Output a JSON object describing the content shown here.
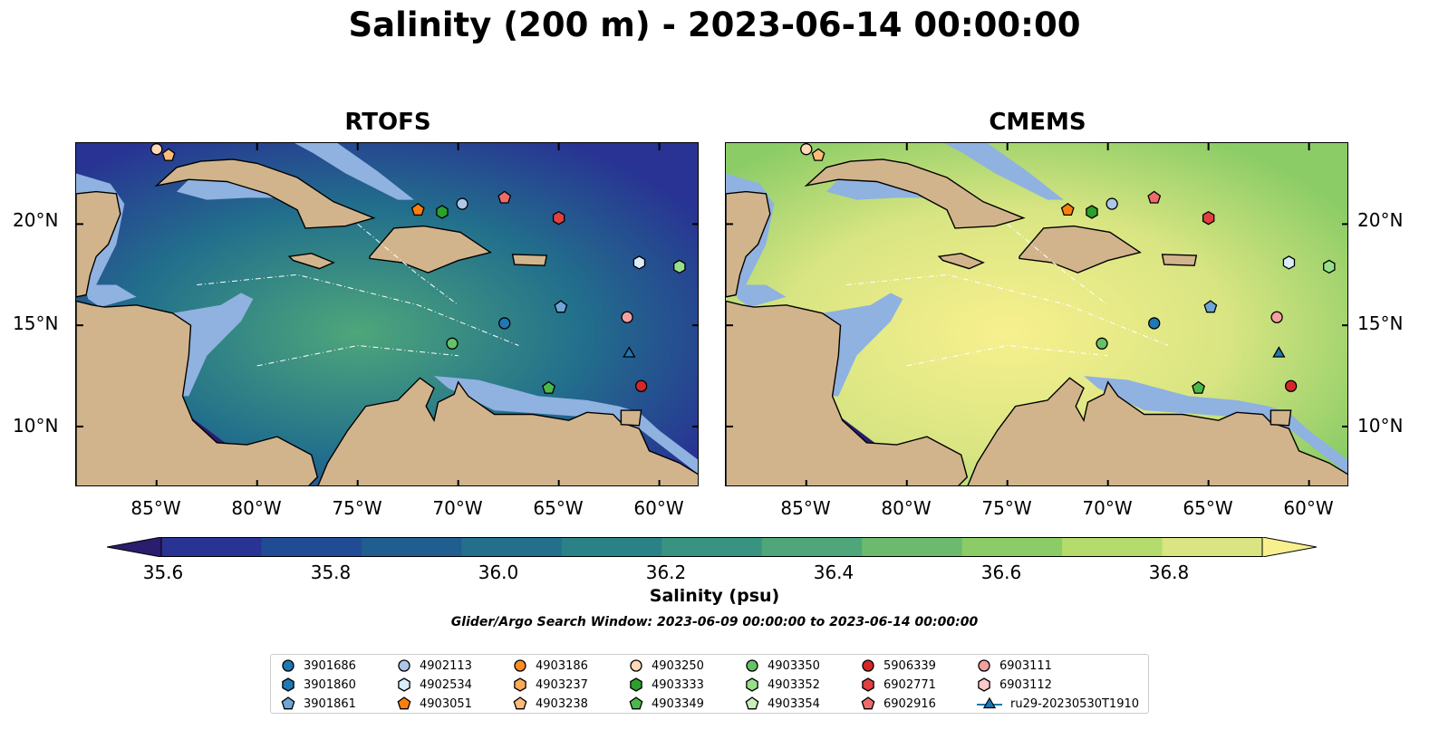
{
  "title": "Salinity (200 m) - 2023-06-14 00:00:00",
  "panels": [
    {
      "title": "RTOFS",
      "base_color": "#2c6d8e"
    },
    {
      "title": "CMEMS",
      "base_color": "#f6ec96"
    }
  ],
  "map_extent": {
    "lon_min": -89,
    "lon_max": -58,
    "lat_min": 7,
    "lat_max": 24
  },
  "lat_ticks": [
    {
      "value": 20,
      "label": "20°N"
    },
    {
      "value": 15,
      "label": "15°N"
    },
    {
      "value": 10,
      "label": "10°N"
    }
  ],
  "lon_ticks": [
    {
      "value": -85,
      "label": "85°W"
    },
    {
      "value": -80,
      "label": "80°W"
    },
    {
      "value": -75,
      "label": "75°W"
    },
    {
      "value": -70,
      "label": "70°W"
    },
    {
      "value": -65,
      "label": "65°W"
    },
    {
      "value": -60,
      "label": "60°W"
    }
  ],
  "colorbar": {
    "label": "Salinity (psu)",
    "min": 35.5,
    "max": 37.0,
    "step": 0.1,
    "ticks": [
      "35.6",
      "35.8",
      "36.0",
      "36.2",
      "36.4",
      "36.6",
      "36.8"
    ],
    "colors": [
      "#2a1d6e",
      "#283393",
      "#1f4c94",
      "#1f5e8f",
      "#22708c",
      "#2a8287",
      "#389480",
      "#4ea67a",
      "#6bba6e",
      "#8bcc66",
      "#b4db6c",
      "#d8e582",
      "#f8f08e"
    ]
  },
  "search_window": "Glider/Argo Search Window: 2023-06-09 00:00:00 to 2023-06-14 00:00:00",
  "colors": {
    "land": "#d2b48c",
    "shelf": "#8fb2e0",
    "markers": {
      "blue_dark": "#1f77b4",
      "blue_light": "#aec7e8",
      "orange": "#ff7f0e",
      "peach": "#ffbb78",
      "green": "#2ca02c",
      "green_light": "#98df8a",
      "red": "#d62728",
      "pink": "#ff9896"
    }
  },
  "legend": [
    {
      "label": "3901686",
      "shape": "circle",
      "color": "#1f77b4"
    },
    {
      "label": "3901860",
      "shape": "hexagon",
      "color": "#1f77b4"
    },
    {
      "label": "3901861",
      "shape": "pentagon",
      "color": "#6ea6d7"
    },
    {
      "label": "4902113",
      "shape": "circle",
      "color": "#aec7e8"
    },
    {
      "label": "4902534",
      "shape": "hexagon",
      "color": "#d8ecfa"
    },
    {
      "label": "4903051",
      "shape": "pentagon",
      "color": "#ff7f0e"
    },
    {
      "label": "4903186",
      "shape": "circle",
      "color": "#ff8c25"
    },
    {
      "label": "4903237",
      "shape": "hexagon",
      "color": "#ffaa55"
    },
    {
      "label": "4903238",
      "shape": "pentagon",
      "color": "#ffbb78"
    },
    {
      "label": "4903250",
      "shape": "circle",
      "color": "#ffd8b5"
    },
    {
      "label": "4903333",
      "shape": "hexagon",
      "color": "#2ca02c"
    },
    {
      "label": "4903349",
      "shape": "pentagon",
      "color": "#4cb84c"
    },
    {
      "label": "4903350",
      "shape": "circle",
      "color": "#66c266"
    },
    {
      "label": "4903352",
      "shape": "hexagon",
      "color": "#98df8a"
    },
    {
      "label": "4903354",
      "shape": "pentagon",
      "color": "#c8f0bd"
    },
    {
      "label": "5906339",
      "shape": "circle",
      "color": "#d62728"
    },
    {
      "label": "6902771",
      "shape": "hexagon",
      "color": "#e04040"
    },
    {
      "label": "6902916",
      "shape": "pentagon",
      "color": "#ef6b6b"
    },
    {
      "label": "6903111",
      "shape": "circle",
      "color": "#f4a0a0"
    },
    {
      "label": "6903112",
      "shape": "hexagon",
      "color": "#fbc9c9"
    },
    {
      "label": "ru29-20230530T1910",
      "shape": "triangle-line",
      "color": "#1f77b4"
    }
  ],
  "floats": [
    {
      "id": "3901686",
      "lon": -67.7,
      "lat": 15.1
    },
    {
      "id": "3901861",
      "lon": -64.9,
      "lat": 15.9
    },
    {
      "id": "4902113",
      "lon": -69.8,
      "lat": 21.0
    },
    {
      "id": "4902534",
      "lon": -61.0,
      "lat": 18.1
    },
    {
      "id": "4903051",
      "lon": -72.0,
      "lat": 20.7
    },
    {
      "id": "4903250",
      "lon": -85.0,
      "lat": 23.7
    },
    {
      "id": "4903238",
      "lon": -84.4,
      "lat": 23.4
    },
    {
      "id": "4903333",
      "lon": -70.8,
      "lat": 20.6
    },
    {
      "id": "4903349",
      "lon": -65.5,
      "lat": 11.9
    },
    {
      "id": "4903350",
      "lon": -70.3,
      "lat": 14.1
    },
    {
      "id": "4903352",
      "lon": -59.0,
      "lat": 17.9
    },
    {
      "id": "5906339",
      "lon": -60.9,
      "lat": 12.0
    },
    {
      "id": "6902771",
      "lon": -65.0,
      "lat": 20.3
    },
    {
      "id": "6902916",
      "lon": -67.7,
      "lat": 21.3
    },
    {
      "id": "6903111",
      "lon": -61.6,
      "lat": 15.4
    },
    {
      "id": "ru29-20230530T1910",
      "lon": -61.5,
      "lat": 13.6
    }
  ]
}
